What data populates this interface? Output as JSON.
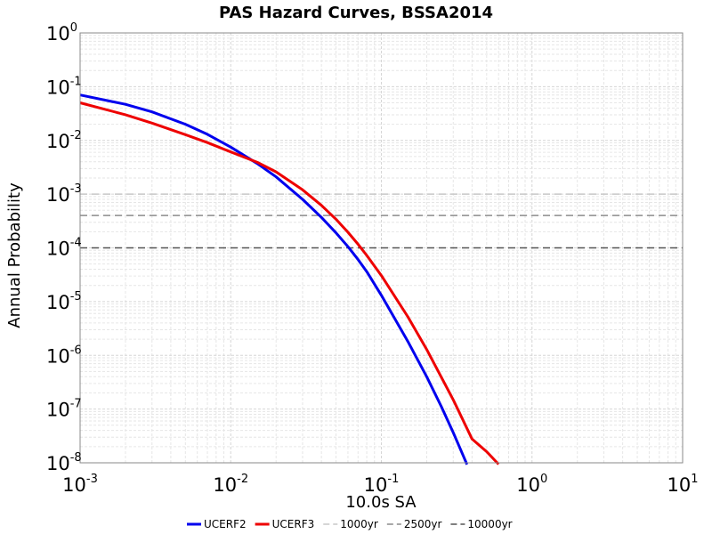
{
  "chart_data": {
    "type": "line",
    "title": "PAS Hazard Curves, BSSA2014",
    "xlabel": "10.0s SA",
    "ylabel": "Annual Probability",
    "x_scale": "log",
    "y_scale": "log",
    "xlim": [
      0.001,
      10
    ],
    "ylim": [
      1e-08,
      1
    ],
    "grid": true,
    "legend_position": "bottom-center",
    "x_ticks": [
      {
        "base": "10",
        "exp": "-3"
      },
      {
        "base": "10",
        "exp": "-2"
      },
      {
        "base": "10",
        "exp": "-1"
      },
      {
        "base": "10",
        "exp": "0"
      },
      {
        "base": "10",
        "exp": "1"
      }
    ],
    "y_ticks": [
      {
        "base": "10",
        "exp": "0"
      },
      {
        "base": "10",
        "exp": "-1"
      },
      {
        "base": "10",
        "exp": "-2"
      },
      {
        "base": "10",
        "exp": "-3"
      },
      {
        "base": "10",
        "exp": "-4"
      },
      {
        "base": "10",
        "exp": "-5"
      },
      {
        "base": "10",
        "exp": "-6"
      },
      {
        "base": "10",
        "exp": "-7"
      },
      {
        "base": "10",
        "exp": "-8"
      }
    ],
    "series": [
      {
        "name": "UCERF2",
        "color": "#0000ee",
        "x": [
          0.001,
          0.002,
          0.003,
          0.005,
          0.007,
          0.01,
          0.015,
          0.02,
          0.03,
          0.04,
          0.05,
          0.06,
          0.07,
          0.08,
          0.1,
          0.15,
          0.2,
          0.25,
          0.3,
          0.35,
          0.37
        ],
        "y": [
          0.07,
          0.047,
          0.034,
          0.02,
          0.013,
          0.0075,
          0.0037,
          0.0021,
          0.0008,
          0.00037,
          0.00019,
          0.000105,
          6.07e-05,
          3.61e-05,
          1.31e-05,
          1.81e-06,
          4.01e-07,
          1.11e-07,
          3.65e-08,
          1.34e-08,
          9.3e-09
        ]
      },
      {
        "name": "UCERF3",
        "color": "#ee0000",
        "x": [
          0.001,
          0.002,
          0.003,
          0.005,
          0.007,
          0.01,
          0.015,
          0.02,
          0.03,
          0.04,
          0.05,
          0.06,
          0.07,
          0.08,
          0.1,
          0.15,
          0.2,
          0.3,
          0.4,
          0.5,
          0.6
        ],
        "y": [
          0.05,
          0.03,
          0.021,
          0.0128,
          0.0091,
          0.0061,
          0.0039,
          0.0026,
          0.0012,
          0.00062,
          0.00034,
          0.000195,
          0.000117,
          7.22e-05,
          3.05e-05,
          5.2e-06,
          1.29e-06,
          1.48e-07,
          2.77e-08,
          1.61e-08,
          9.4e-09
        ]
      }
    ],
    "reference_lines": [
      {
        "name": "1000yr",
        "y": 0.001,
        "color": "#c8c8c8"
      },
      {
        "name": "2500yr",
        "y": 0.0004,
        "color": "#8c8c8c"
      },
      {
        "name": "10000yr",
        "y": 0.0001,
        "color": "#555555"
      }
    ]
  }
}
